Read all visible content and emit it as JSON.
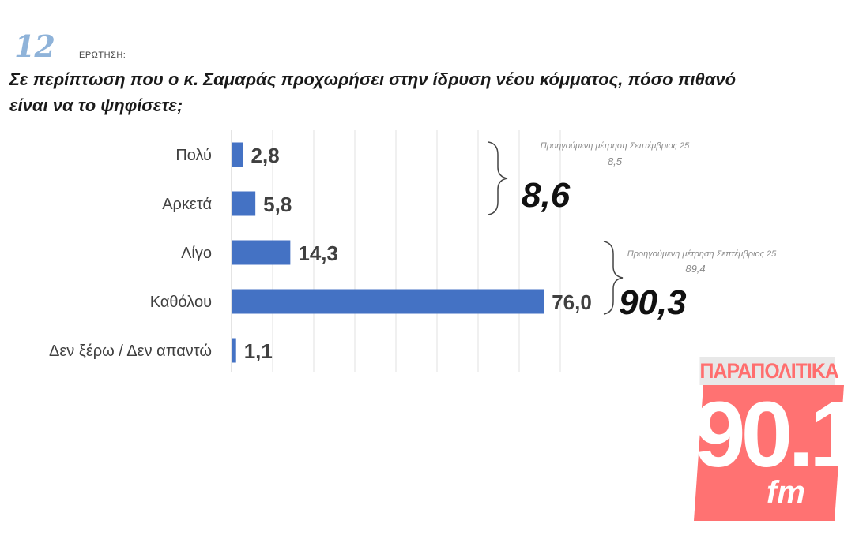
{
  "question": {
    "number": "12",
    "label": "ΕΡΩΤΗΣΗ:",
    "text_line1": "Σε περίπτωση που ο κ. Σαμαράς προχωρήσει στην ίδρυση νέου κόμματος, πόσο πιθανό",
    "text_line2": "είναι να το ψηφίσετε;"
  },
  "chart_data": {
    "type": "bar",
    "orientation": "horizontal",
    "categories": [
      "Πολύ",
      "Αρκετά",
      "Λίγο",
      "Καθόλου",
      "Δεν ξέρω / Δεν απαντώ"
    ],
    "values": [
      2.8,
      5.8,
      14.3,
      76.0,
      1.1
    ],
    "value_labels": [
      "2,8",
      "5,8",
      "14,3",
      "76,0",
      "1,1"
    ],
    "xlim": [
      0,
      80
    ],
    "grid": true,
    "bar_color": "#4472c4",
    "groups": [
      {
        "members": [
          "Πολύ",
          "Αρκετά"
        ],
        "total": "8,6",
        "previous_label": "Προηγούμενη μέτρηση Σεπτέμβριος 25",
        "previous_value": "8,5"
      },
      {
        "members": [
          "Λίγο",
          "Καθόλου"
        ],
        "total": "90,3",
        "previous_label": "Προηγούμενη μέτρηση Σεπτέμβριος 25",
        "previous_value": "89,4"
      }
    ]
  },
  "logo": {
    "top": "ΠΑΡΑΠΟΛΙΤΙΚΑ",
    "number": "90.1",
    "suffix": "fm",
    "color": "#ff7272"
  }
}
